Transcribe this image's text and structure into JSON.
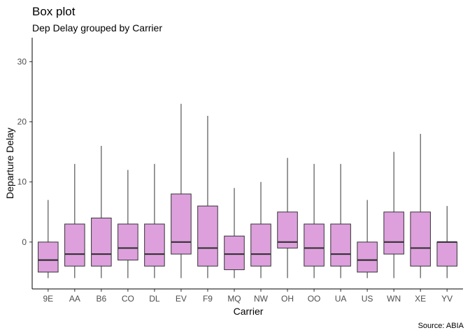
{
  "chart_data": {
    "type": "box",
    "title": "Box plot",
    "subtitle": "Dep Delay grouped by Carrier",
    "xlabel": "Carrier",
    "ylabel": "Departure Delay",
    "caption": "Source: ABIA",
    "ylim": [
      -7.8,
      34
    ],
    "yticks": [
      0,
      10,
      20,
      30
    ],
    "grid": false,
    "fill_color": "#dda0dd",
    "stroke_color": "#333333",
    "categories": [
      "9E",
      "AA",
      "B6",
      "CO",
      "DL",
      "EV",
      "F9",
      "MQ",
      "NW",
      "OH",
      "OO",
      "UA",
      "US",
      "WN",
      "XE",
      "YV"
    ],
    "boxes": [
      {
        "min": -6,
        "q1": -5,
        "median": -3,
        "q3": 0,
        "max": 7
      },
      {
        "min": -6,
        "q1": -4,
        "median": -2,
        "q3": 3,
        "max": 13
      },
      {
        "min": -6,
        "q1": -4,
        "median": -2,
        "q3": 4,
        "max": 16
      },
      {
        "min": -6,
        "q1": -3,
        "median": -1,
        "q3": 3,
        "max": 12
      },
      {
        "min": -6,
        "q1": -4,
        "median": -2,
        "q3": 3,
        "max": 13
      },
      {
        "min": -6,
        "q1": -2,
        "median": 0,
        "q3": 8,
        "max": 23
      },
      {
        "min": -6,
        "q1": -4,
        "median": -1,
        "q3": 6,
        "max": 21
      },
      {
        "min": -6,
        "q1": -4.6,
        "median": -2,
        "q3": 1,
        "max": 9
      },
      {
        "min": -6,
        "q1": -4,
        "median": -2,
        "q3": 3,
        "max": 10
      },
      {
        "min": -6,
        "q1": -1,
        "median": 0,
        "q3": 5,
        "max": 14
      },
      {
        "min": -6,
        "q1": -4,
        "median": -1,
        "q3": 3,
        "max": 13
      },
      {
        "min": -6,
        "q1": -4,
        "median": -2,
        "q3": 3,
        "max": 13
      },
      {
        "min": -6,
        "q1": -5,
        "median": -3,
        "q3": 0,
        "max": 7
      },
      {
        "min": -6,
        "q1": -2,
        "median": 0,
        "q3": 5,
        "max": 15
      },
      {
        "min": -6,
        "q1": -4,
        "median": -1,
        "q3": 5,
        "max": 18
      },
      {
        "min": -6,
        "q1": -4,
        "median": 0,
        "q3": 0,
        "max": 6
      }
    ]
  }
}
